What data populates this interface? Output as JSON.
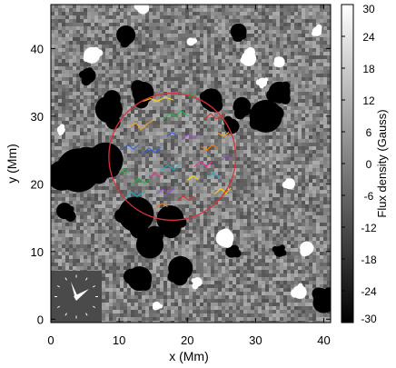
{
  "chart_data": {
    "type": "heatmap",
    "title": "",
    "xlabel": "x (Mm)",
    "ylabel": "y (Mm)",
    "xlim": [
      0,
      41
    ],
    "ylim": [
      -0.5,
      46.5
    ],
    "xticks": [
      0,
      10,
      20,
      30,
      40
    ],
    "yticks": [
      0,
      10,
      20,
      30,
      40
    ],
    "grid": false,
    "colorbar": {
      "label": "Flux density  (Gauss)",
      "range": [
        -30,
        30
      ],
      "ticks": [
        30,
        24,
        18,
        12,
        6,
        0,
        -6,
        -12,
        -18,
        -24,
        -30
      ],
      "colormap": "grayscale, black = -30 G, white = 30 G"
    },
    "circle": {
      "center_x": 17.8,
      "center_y": 24.0,
      "radius_mm": 9.3,
      "color": "#d9323a"
    },
    "clock_inset": {
      "position": "bottom-left",
      "background": "#4a4a4a",
      "hand_color": "#ffffff"
    },
    "field_mean": 0,
    "negative_patches": [
      {
        "x": 4.0,
        "y": 22.0,
        "r": 3.2
      },
      {
        "x": 8.0,
        "y": 23.5,
        "r": 2.6
      },
      {
        "x": 12.5,
        "y": 15.5,
        "r": 2.6
      },
      {
        "x": 17.5,
        "y": 14.8,
        "r": 2.0
      },
      {
        "x": 14.5,
        "y": 11.0,
        "r": 2.0
      },
      {
        "x": 19.0,
        "y": 7.5,
        "r": 1.8
      },
      {
        "x": 13.0,
        "y": 6.0,
        "r": 1.8
      },
      {
        "x": 8.5,
        "y": 31.0,
        "r": 2.0
      },
      {
        "x": 13.5,
        "y": 33.5,
        "r": 1.6
      },
      {
        "x": 31.5,
        "y": 30.0,
        "r": 2.4
      },
      {
        "x": 33.5,
        "y": 33.5,
        "r": 1.6
      },
      {
        "x": 28.0,
        "y": 31.5,
        "r": 1.3
      },
      {
        "x": 23.5,
        "y": 32.5,
        "r": 1.6
      },
      {
        "x": 26.5,
        "y": 28.5,
        "r": 1.1
      },
      {
        "x": 11.0,
        "y": 42.0,
        "r": 1.4
      },
      {
        "x": 27.5,
        "y": 42.5,
        "r": 1.2
      },
      {
        "x": 40.0,
        "y": 2.5,
        "r": 1.6
      },
      {
        "x": 33.5,
        "y": 10.0,
        "r": 0.8
      },
      {
        "x": 26.5,
        "y": 10.0,
        "r": 0.9
      },
      {
        "x": 5.5,
        "y": 36.0,
        "r": 1.1
      },
      {
        "x": 2.0,
        "y": 16.0,
        "r": 1.2
      }
    ],
    "positive_patches": [
      {
        "x": 6.0,
        "y": 39.0,
        "r": 1.2
      },
      {
        "x": 29.0,
        "y": 38.5,
        "r": 1.1
      },
      {
        "x": 33.5,
        "y": 38.0,
        "r": 0.8
      },
      {
        "x": 25.5,
        "y": 12.0,
        "r": 1.3
      },
      {
        "x": 37.5,
        "y": 10.5,
        "r": 1.0
      },
      {
        "x": 36.5,
        "y": 4.0,
        "r": 1.0
      },
      {
        "x": 35.0,
        "y": 20.0,
        "r": 0.8
      },
      {
        "x": 31.0,
        "y": 35.0,
        "r": 0.7
      },
      {
        "x": 13.5,
        "y": 46.0,
        "r": 0.9
      },
      {
        "x": 21.5,
        "y": 5.5,
        "r": 0.7
      },
      {
        "x": 15.5,
        "y": 2.0,
        "r": 0.6
      },
      {
        "x": 39.0,
        "y": 42.5,
        "r": 0.7
      },
      {
        "x": 20.5,
        "y": 41.0,
        "r": 0.6
      },
      {
        "x": 1.5,
        "y": 28.0,
        "r": 0.6
      }
    ],
    "tracks": [
      {
        "color": "#ff9f1c",
        "points": [
          [
            11.5,
            28.5
          ],
          [
            12.5,
            29.0
          ],
          [
            13.2,
            28.0
          ],
          [
            14.0,
            28.8
          ],
          [
            15.0,
            29.4
          ]
        ]
      },
      {
        "color": "#ffd400",
        "points": [
          [
            13.5,
            32.2
          ],
          [
            14.6,
            32.6
          ],
          [
            15.6,
            32.2
          ],
          [
            16.7,
            32.8
          ],
          [
            18.0,
            32.4
          ]
        ]
      },
      {
        "color": "#1eb843",
        "points": [
          [
            16.5,
            29.5
          ],
          [
            17.4,
            30.4
          ],
          [
            18.3,
            29.9
          ],
          [
            19.0,
            30.8
          ],
          [
            20.2,
            30.0
          ]
        ]
      },
      {
        "color": "#9c4bd3",
        "points": [
          [
            19.2,
            26.5
          ],
          [
            20.1,
            27.3
          ],
          [
            21.0,
            26.7
          ],
          [
            21.8,
            27.5
          ]
        ]
      },
      {
        "color": "#e0301e",
        "points": [
          [
            22.5,
            29.5
          ],
          [
            23.4,
            30.4
          ],
          [
            24.2,
            29.6
          ],
          [
            25.1,
            30.2
          ]
        ]
      },
      {
        "color": "#2f5ee0",
        "points": [
          [
            13.5,
            24.5
          ],
          [
            14.4,
            25.3
          ],
          [
            15.3,
            24.6
          ],
          [
            16.1,
            25.4
          ]
        ]
      },
      {
        "color": "#14b3c7",
        "points": [
          [
            16.2,
            22.0
          ],
          [
            17.1,
            22.8
          ],
          [
            18.0,
            22.1
          ],
          [
            18.9,
            22.8
          ]
        ]
      },
      {
        "color": "#ff2aa0",
        "points": [
          [
            21.0,
            22.5
          ],
          [
            21.9,
            23.3
          ],
          [
            22.8,
            22.6
          ],
          [
            23.6,
            23.3
          ]
        ]
      },
      {
        "color": "#ff7a00",
        "points": [
          [
            22.0,
            25.5
          ],
          [
            22.9,
            25.0
          ],
          [
            23.7,
            25.8
          ],
          [
            24.5,
            25.1
          ]
        ]
      },
      {
        "color": "#2f5ee0",
        "points": [
          [
            10.5,
            25.0
          ],
          [
            11.3,
            25.8
          ],
          [
            12.1,
            25.1
          ],
          [
            12.9,
            25.8
          ]
        ]
      },
      {
        "color": "#1eb843",
        "points": [
          [
            12.0,
            20.0
          ],
          [
            12.9,
            20.8
          ],
          [
            13.7,
            20.1
          ],
          [
            14.6,
            20.7
          ]
        ]
      },
      {
        "color": "#ffd400",
        "points": [
          [
            24.0,
            18.5
          ],
          [
            24.9,
            19.3
          ],
          [
            25.7,
            18.6
          ],
          [
            26.4,
            19.4
          ]
        ]
      },
      {
        "color": "#14b3c7",
        "points": [
          [
            11.0,
            18.0
          ],
          [
            11.8,
            18.8
          ],
          [
            12.6,
            18.1
          ],
          [
            13.4,
            18.7
          ]
        ]
      },
      {
        "color": "#9c4bd3",
        "points": [
          [
            15.5,
            18.5
          ],
          [
            16.4,
            19.2
          ],
          [
            17.2,
            18.6
          ],
          [
            18.0,
            19.3
          ]
        ]
      },
      {
        "color": "#e0301e",
        "points": [
          [
            18.5,
            17.5
          ],
          [
            19.4,
            18.2
          ],
          [
            20.2,
            17.6
          ],
          [
            21.1,
            18.2
          ]
        ]
      },
      {
        "color": "#ff9f1c",
        "points": [
          [
            24.5,
            27.5
          ],
          [
            25.4,
            27.0
          ],
          [
            26.1,
            27.7
          ]
        ]
      },
      {
        "color": "#1eb843",
        "points": [
          [
            19.5,
            33.5
          ],
          [
            20.3,
            32.9
          ],
          [
            21.1,
            33.4
          ]
        ]
      },
      {
        "color": "#2f5ee0",
        "points": [
          [
            17.0,
            27.0
          ],
          [
            17.8,
            27.6
          ],
          [
            18.6,
            27.0
          ]
        ]
      },
      {
        "color": "#ff2aa0",
        "points": [
          [
            14.5,
            21.0
          ],
          [
            15.3,
            21.6
          ],
          [
            16.1,
            21.0
          ]
        ]
      },
      {
        "color": "#ffd400",
        "points": [
          [
            20.0,
            20.5
          ],
          [
            20.8,
            21.2
          ],
          [
            21.6,
            20.6
          ]
        ]
      },
      {
        "color": "#14b3c7",
        "points": [
          [
            23.0,
            21.0
          ],
          [
            23.8,
            21.6
          ],
          [
            24.6,
            21.0
          ]
        ]
      },
      {
        "color": "#1eb843",
        "points": [
          [
            10.0,
            21.5
          ],
          [
            10.8,
            22.2
          ],
          [
            11.5,
            21.6
          ]
        ]
      },
      {
        "color": "#9c4bd3",
        "points": [
          [
            25.0,
            23.5
          ],
          [
            25.8,
            24.2
          ],
          [
            26.5,
            23.6
          ]
        ]
      },
      {
        "color": "#ff7a00",
        "points": [
          [
            15.5,
            16.5
          ],
          [
            16.3,
            17.1
          ],
          [
            17.1,
            16.6
          ]
        ]
      }
    ]
  }
}
